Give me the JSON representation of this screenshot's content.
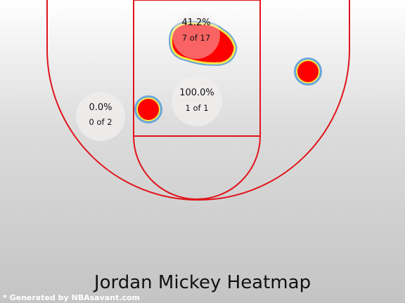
{
  "chart_data": {
    "type": "heatmap",
    "title": "Jordan Mickey Heatmap",
    "credit": "* Generated by NBAsavant.com",
    "colors": {
      "court_line": "#e0141b",
      "hot": "#ff0000",
      "ring_yellow": "#f2e84a",
      "ring_blue": "#6aa6dc",
      "bubble": "#f0ecec",
      "bg_top": "#ffffff",
      "bg_bottom": "#c4c4c4",
      "credit_text": "#ffffff"
    },
    "zones": [
      {
        "name": "restricted-area",
        "pct": "41.2%",
        "made": 7,
        "att": 17,
        "label": "7 of 17"
      },
      {
        "name": "paint-non-ra",
        "pct": "100.0%",
        "made": 1,
        "att": 1,
        "label": "1 of 1"
      },
      {
        "name": "left-mid-range",
        "pct": "0.0%",
        "made": 0,
        "att": 2,
        "label": "0 of 2"
      }
    ]
  }
}
